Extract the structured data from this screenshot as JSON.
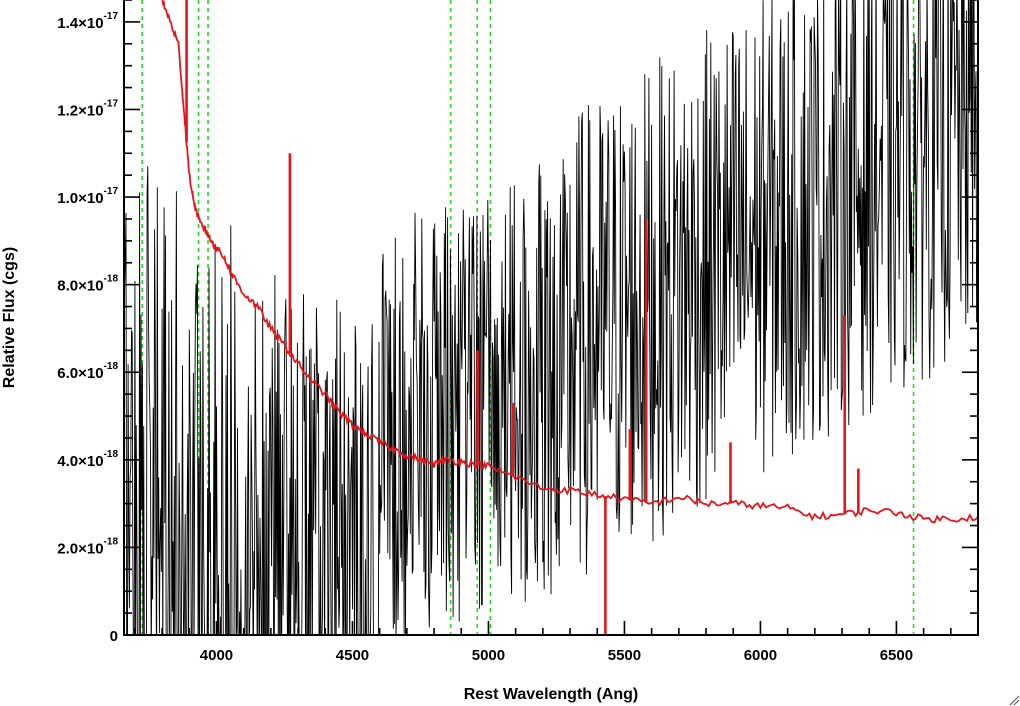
{
  "chart_data": {
    "type": "line",
    "xlabel": "Rest Wavelength (Ang)",
    "ylabel": "Relative Flux (cgs)",
    "xlim": [
      3660,
      6800
    ],
    "ylim": [
      0,
      1.45e-17
    ],
    "x_ticks": [
      {
        "value": 4000,
        "label": "4000"
      },
      {
        "value": 4500,
        "label": "4500"
      },
      {
        "value": 5000,
        "label": "5000"
      },
      {
        "value": 5500,
        "label": "5500"
      },
      {
        "value": 6000,
        "label": "6000"
      },
      {
        "value": 6500,
        "label": "6500"
      }
    ],
    "y_ticks": [
      {
        "value": 0,
        "mantissa": "0",
        "exponent": ""
      },
      {
        "value": 2e-18,
        "mantissa": "2.0×10",
        "exponent": "-18"
      },
      {
        "value": 4e-18,
        "mantissa": "4.0×10",
        "exponent": "-18"
      },
      {
        "value": 6e-18,
        "mantissa": "6.0×10",
        "exponent": "-18"
      },
      {
        "value": 8e-18,
        "mantissa": "8.0×10",
        "exponent": "-18"
      },
      {
        "value": 1e-17,
        "mantissa": "1.0×10",
        "exponent": "-17"
      },
      {
        "value": 1.2e-17,
        "mantissa": "1.2×10",
        "exponent": "-17"
      },
      {
        "value": 1.4e-17,
        "mantissa": "1.4×10",
        "exponent": "-17"
      }
    ],
    "x_minor_step": 100,
    "y_minor_step": 5e-19,
    "reference_lines": [
      3727,
      3934,
      3969,
      4861,
      4959,
      5007,
      6563
    ],
    "series": [
      {
        "role": "observed-spectrum",
        "color": "#000000",
        "x_range": [
          3660,
          6800
        ],
        "x_step": 2.5
      },
      {
        "role": "model-template",
        "color": "#e8141c",
        "x": [
          3800,
          3830,
          3860,
          3880,
          3900,
          3920,
          3940,
          3960,
          3980,
          4000,
          4030,
          4060,
          4100,
          4150,
          4200,
          4250,
          4300,
          4350,
          4400,
          4450,
          4500,
          4550,
          4600,
          4650,
          4700,
          4750,
          4800,
          4850,
          4900,
          4950,
          5000,
          5100,
          5200,
          5300,
          5400,
          5500,
          5600,
          5700,
          5800,
          5900,
          6000,
          6100,
          6200,
          6300,
          6400,
          6500,
          6600,
          6700,
          6800
        ],
        "y": [
          1.45e-17,
          1.4e-17,
          1.35e-17,
          1.2e-17,
          1.05e-17,
          9.8e-18,
          9.4e-18,
          9.25e-18,
          9e-18,
          8.85e-18,
          8.6e-18,
          8.2e-18,
          7.8e-18,
          7.5e-18,
          7e-18,
          6.6e-18,
          6.2e-18,
          5.8e-18,
          5.5e-18,
          5.1e-18,
          4.8e-18,
          4.6e-18,
          4.4e-18,
          4.25e-18,
          4.1e-18,
          4e-18,
          3.9e-18,
          4e-18,
          3.95e-18,
          3.9e-18,
          3.85e-18,
          3.6e-18,
          3.35e-18,
          3.3e-18,
          3.2e-18,
          3.1e-18,
          3e-18,
          3.15e-18,
          3e-18,
          3e-18,
          2.95e-18,
          2.9e-18,
          2.7e-18,
          2.75e-18,
          2.85e-18,
          2.8e-18,
          2.65e-18,
          2.65e-18,
          2.7e-18
        ],
        "spikes": [
          {
            "x": 3890,
            "y": 1.45e-17
          },
          {
            "x": 4270,
            "y": 1.1e-17
          },
          {
            "x": 4960,
            "y": 6.5e-18
          },
          {
            "x": 5090,
            "y": 5.3e-18
          },
          {
            "x": 5430,
            "y": -2e-19
          },
          {
            "x": 5520,
            "y": 4.7e-18
          },
          {
            "x": 5580,
            "y": 9.5e-18
          },
          {
            "x": 5890,
            "y": 4.4e-18
          },
          {
            "x": 6310,
            "y": 7.3e-18
          },
          {
            "x": 6360,
            "y": 3.8e-18
          }
        ]
      }
    ]
  }
}
